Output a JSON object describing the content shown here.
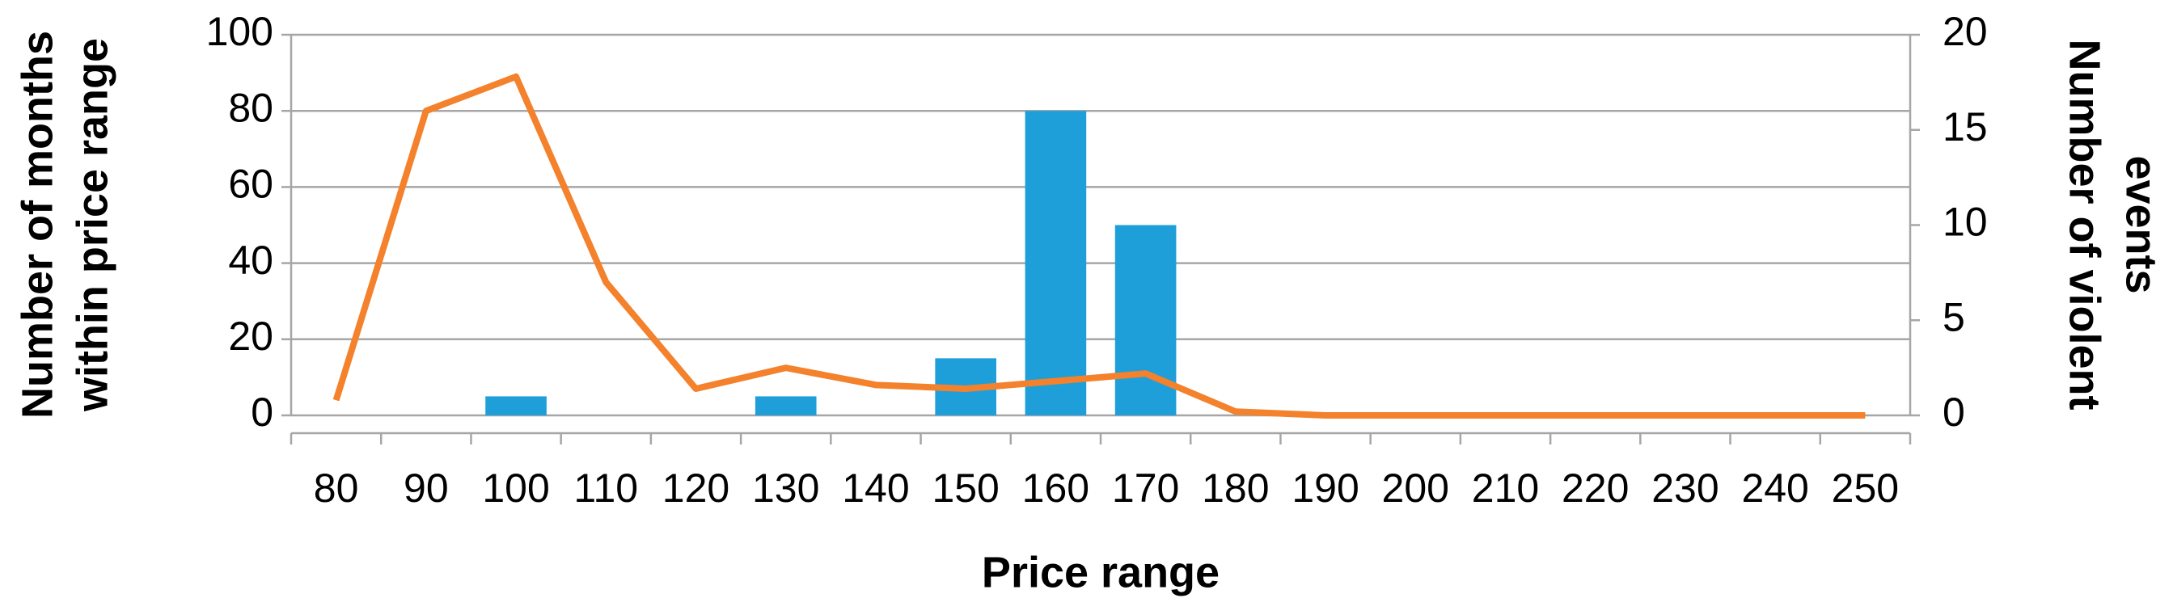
{
  "chart_data": {
    "type": "bar-line",
    "categories": [
      "80",
      "90",
      "100",
      "110",
      "120",
      "130",
      "140",
      "150",
      "160",
      "170",
      "180",
      "190",
      "200",
      "210",
      "220",
      "230",
      "240",
      "250"
    ],
    "xlabel": "Price range",
    "ylabel": [
      "Number of months",
      "within price range"
    ],
    "y2label": [
      "Number of violent",
      "events"
    ],
    "series": [
      {
        "name": "Number of months within price range",
        "type": "bar",
        "color": "#1f9fda",
        "values": [
          0,
          0,
          5,
          0,
          0,
          5,
          0,
          15,
          80,
          50,
          0,
          0,
          0,
          0,
          0,
          0,
          0,
          0
        ]
      },
      {
        "name": "Number of violent events",
        "type": "line",
        "axis": "y2",
        "color": "#f4812c",
        "values": [
          0.8,
          16,
          17.8,
          7,
          1.4,
          2.5,
          1.6,
          1.4,
          1.8,
          2.2,
          0.2,
          0,
          0,
          0,
          0,
          0,
          0,
          0
        ]
      }
    ],
    "ylim": [
      0,
      100
    ],
    "yticks": [
      0,
      20,
      40,
      60,
      80,
      100
    ],
    "y2lim": [
      0,
      20
    ],
    "y2ticks": [
      0,
      5,
      10,
      15,
      20
    ],
    "grid": true
  }
}
